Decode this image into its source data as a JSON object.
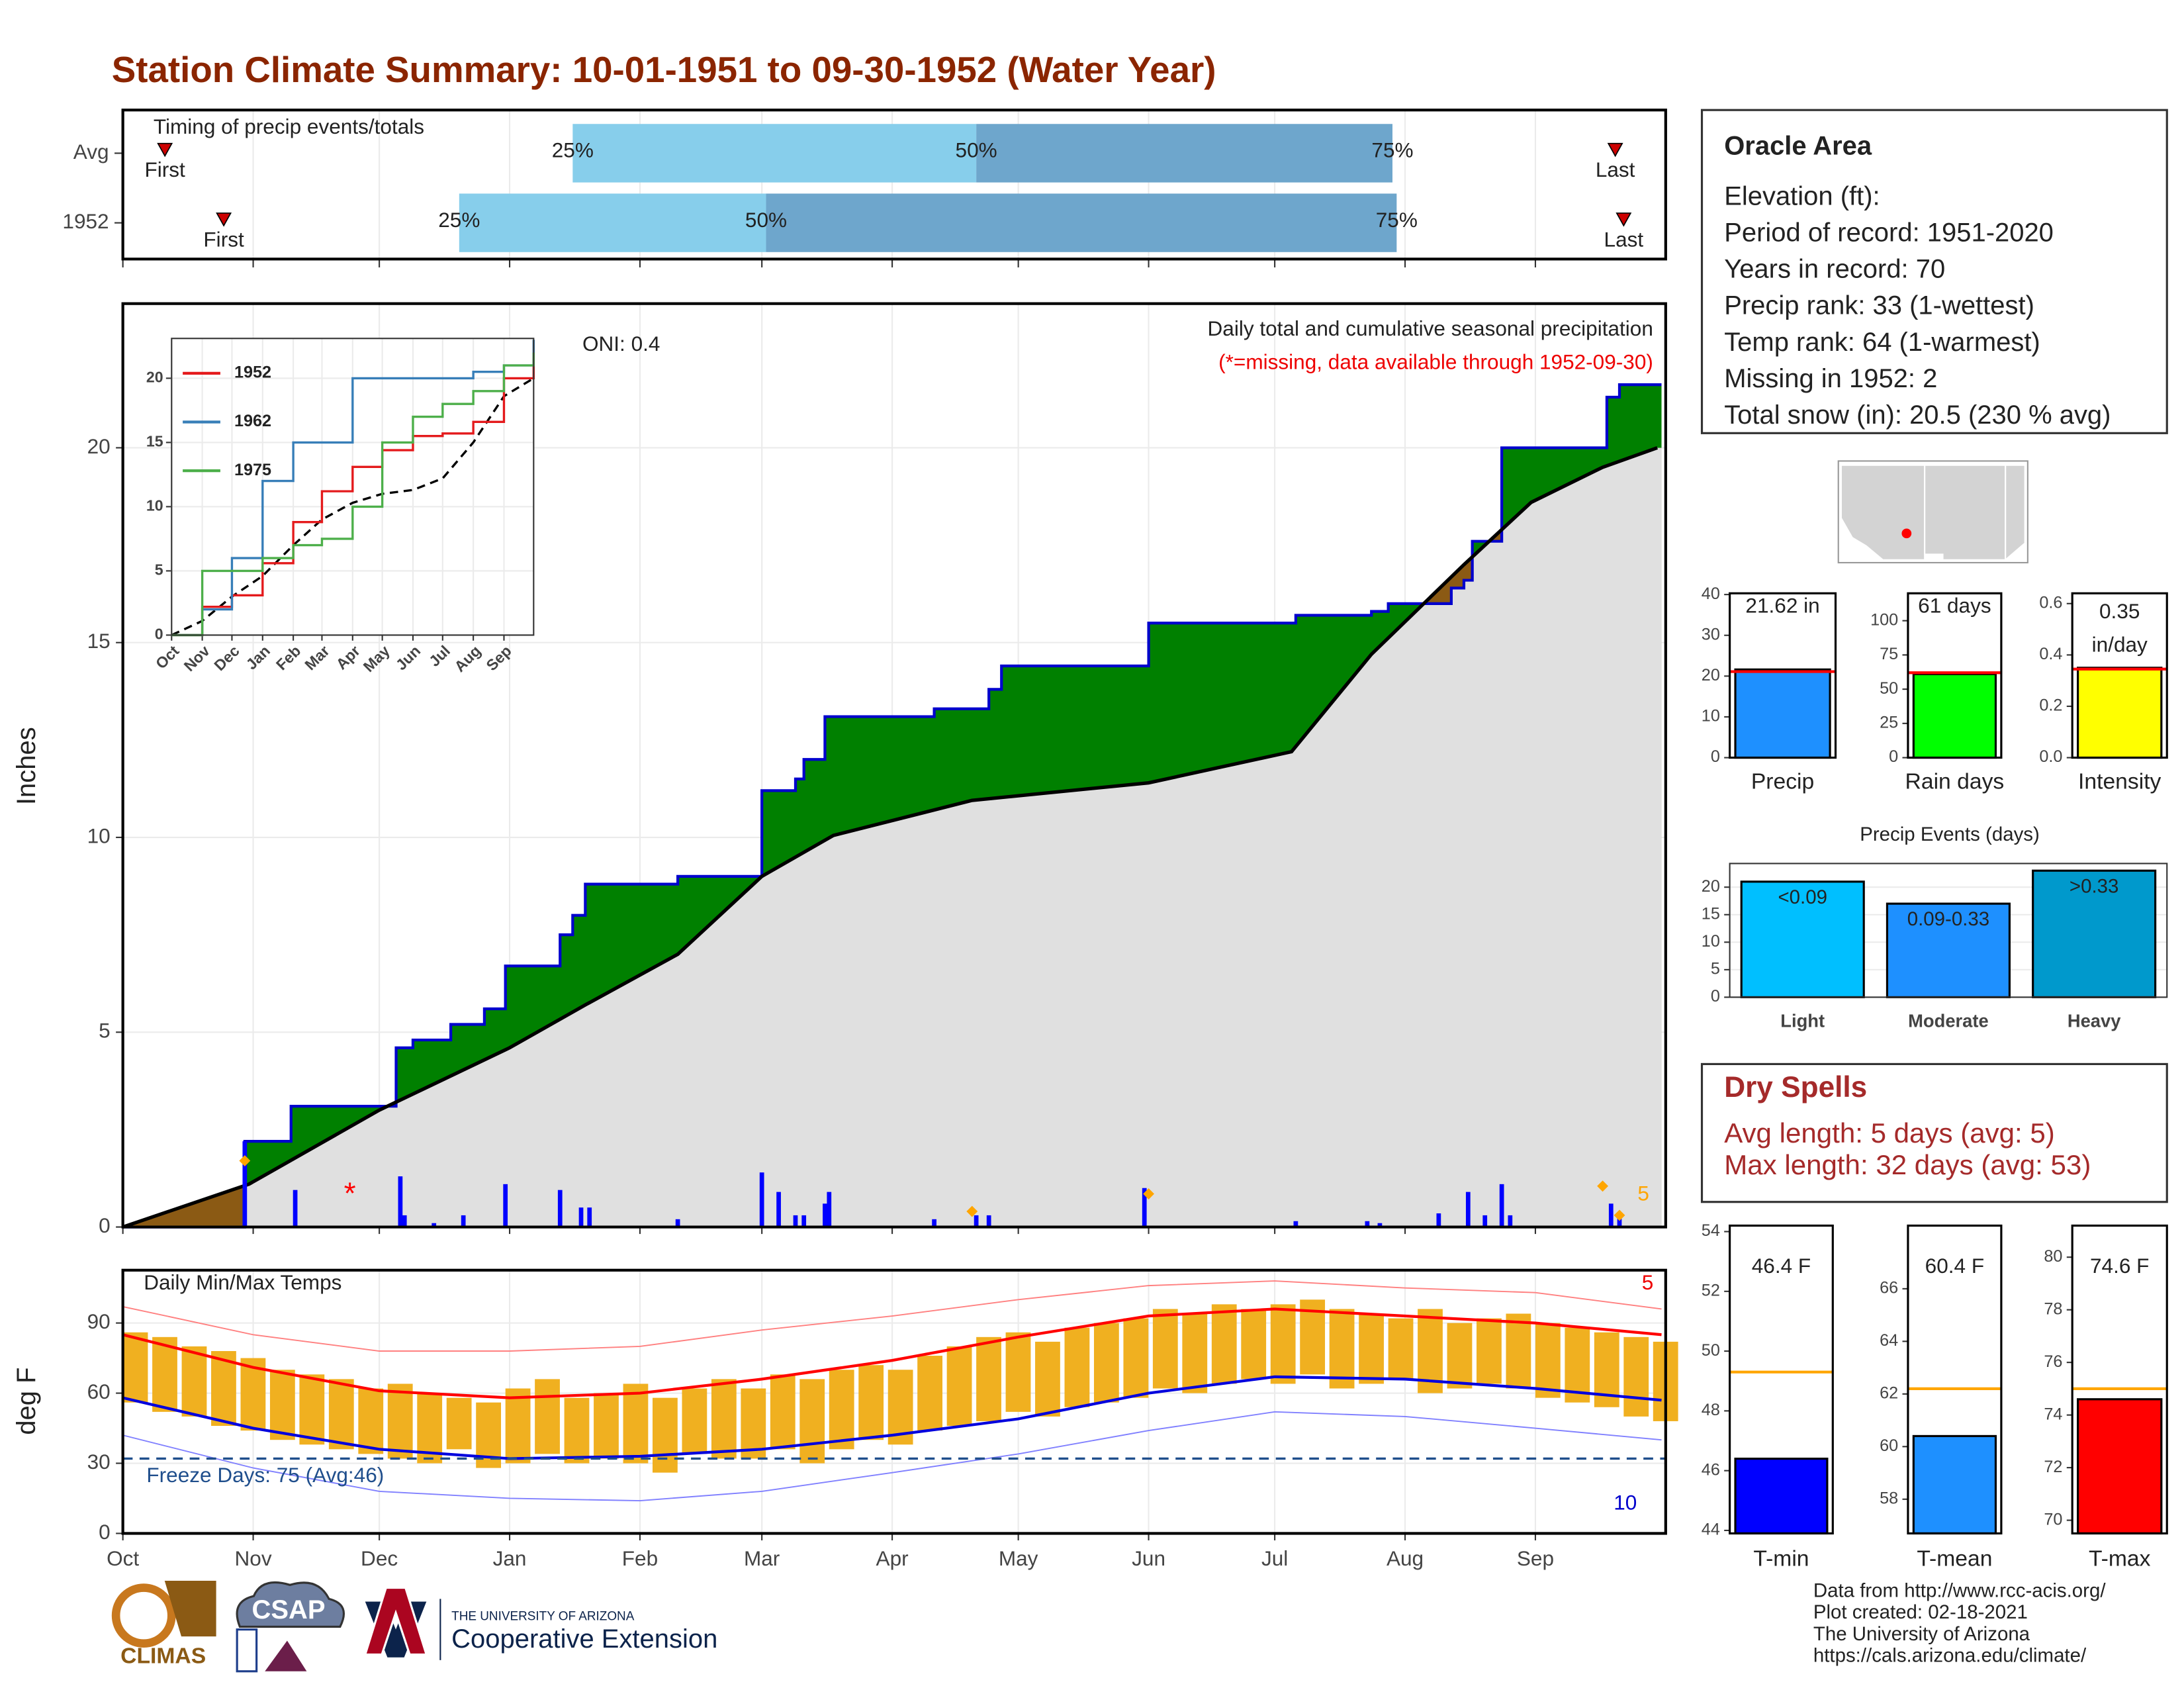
{
  "title": "Station Climate Summary: 10-01-1951 to 09-30-1952 (Water Year)",
  "timing": {
    "title": "Timing of precip events/totals",
    "xlim": [
      0,
      366
    ],
    "rows": [
      {
        "label": "Avg",
        "first": 10,
        "q25": 107,
        "q50": 203,
        "q75": 302,
        "last": 355
      },
      {
        "label": "1952",
        "first": 24,
        "q25": 80,
        "q50": 153,
        "q75": 303,
        "last": 357
      }
    ],
    "first_label": "First",
    "last_label": "Last",
    "q25_label": "25%",
    "q50_label": "50%",
    "q75_label": "75%",
    "light_color": "#87ceeb",
    "dark_color": "#6ea6cc",
    "marker_color": "#cc0000"
  },
  "precip": {
    "type": "area",
    "annotation": "ONI: 0.4",
    "subtitle": "Daily total and cumulative seasonal precipitation",
    "note": "(*=missing, data available through 1952-09-30)",
    "ylabel": "Inches",
    "xlim": [
      0,
      366
    ],
    "ylim": [
      0,
      23.7
    ],
    "yticks": [
      0,
      5,
      10,
      15,
      20
    ],
    "xticks": [
      {
        "value": 0,
        "label": "Oct"
      },
      {
        "value": 31,
        "label": "Nov"
      },
      {
        "value": 61,
        "label": "Dec"
      },
      {
        "value": 92,
        "label": "Jan"
      },
      {
        "value": 123,
        "label": "Feb"
      },
      {
        "value": 152,
        "label": "Mar"
      },
      {
        "value": 183,
        "label": "Apr"
      },
      {
        "value": 213,
        "label": "May"
      },
      {
        "value": 244,
        "label": "Jun"
      },
      {
        "value": 274,
        "label": "Jul"
      },
      {
        "value": 305,
        "label": "Aug"
      },
      {
        "value": 336,
        "label": "Sep"
      }
    ],
    "observed": {
      "color": "#0000cd",
      "x": [
        0,
        29,
        40,
        65,
        69,
        78,
        86,
        91,
        104,
        107,
        110,
        132,
        152,
        160,
        162,
        167,
        193,
        206,
        209,
        244,
        279,
        297,
        301,
        316,
        319,
        321,
        328,
        353,
        356
      ],
      "values": [
        0,
        2.2,
        3.1,
        4.6,
        4.8,
        5.2,
        5.6,
        6.7,
        7.5,
        8.0,
        8.8,
        9.0,
        11.2,
        11.5,
        12.0,
        13.1,
        13.3,
        13.8,
        14.4,
        15.5,
        15.7,
        15.8,
        16.0,
        16.4,
        16.6,
        17.6,
        20.0,
        21.3,
        21.62
      ]
    },
    "average": {
      "color": "#000000",
      "x": [
        0,
        30,
        61,
        92,
        110,
        132,
        152,
        169,
        202,
        244,
        278,
        297,
        319,
        335,
        352,
        365
      ],
      "values": [
        0,
        1.1,
        3.0,
        4.6,
        5.7,
        7.0,
        9.0,
        10.05,
        10.95,
        11.4,
        12.2,
        14.7,
        17.0,
        18.6,
        19.5,
        20.0
      ]
    },
    "above_color": "#008000",
    "below_color": "#8b5a14",
    "base_color": "#e0e0e0",
    "daily": {
      "color": "#0000ff",
      "x": [
        29,
        41,
        66,
        67,
        74,
        81,
        91,
        104,
        109,
        111,
        132,
        152,
        156,
        160,
        162,
        167,
        168,
        193,
        203,
        206,
        243,
        279,
        296,
        299,
        313,
        320,
        324,
        328,
        330,
        354,
        356
      ],
      "values": [
        2.2,
        0.95,
        1.3,
        0.3,
        0.1,
        0.3,
        1.1,
        0.95,
        0.5,
        0.5,
        0.2,
        1.4,
        0.9,
        0.3,
        0.3,
        0.6,
        0.9,
        0.2,
        0.3,
        0.3,
        1.0,
        0.15,
        0.15,
        0.1,
        0.35,
        0.9,
        0.3,
        1.1,
        0.3,
        0.6,
        0.3
      ]
    },
    "snow": {
      "color": "#ffa500",
      "x": [
        29,
        202,
        244,
        352,
        356
      ],
      "values": [
        1.7,
        0.4,
        0.85,
        1.05,
        0.3
      ],
      "count": 5
    },
    "missing": {
      "label": "*",
      "x": 54,
      "value": 0.95,
      "color": "#ff0000"
    }
  },
  "inset": {
    "xlim": [
      0,
      366
    ],
    "ylim": [
      0,
      23.1
    ],
    "yticks": [
      0,
      5,
      10,
      15,
      20
    ],
    "x": [
      0,
      31,
      61,
      92,
      123,
      152,
      183,
      213,
      244,
      274,
      305,
      336,
      366
    ],
    "series": [
      {
        "name": "1952",
        "color": "#e41a1c",
        "values": [
          0,
          2.2,
          3.1,
          5.6,
          8.8,
          11.2,
          13.1,
          14.4,
          15.5,
          15.7,
          16.6,
          20.0,
          21.6
        ]
      },
      {
        "name": "1962",
        "color": "#377eb8",
        "values": [
          0,
          2,
          6,
          12,
          15,
          15,
          20,
          20,
          20,
          20,
          20.5,
          21,
          23
        ]
      },
      {
        "name": "1975",
        "color": "#4daf4a",
        "values": [
          0,
          5,
          5,
          6,
          7,
          7.5,
          10,
          15,
          17,
          18,
          19,
          21,
          22
        ]
      }
    ],
    "average": {
      "color": "#000000",
      "values": [
        0,
        1.1,
        3,
        4.6,
        7,
        9,
        10.3,
        11,
        11.3,
        12.2,
        15,
        18.6,
        20
      ]
    }
  },
  "temps": {
    "title": "Daily Min/Max Temps",
    "ylabel": "deg F",
    "ylim": [
      0,
      112.6
    ],
    "yticks": [
      0,
      30,
      60,
      90
    ],
    "bar_color": "#f0b020",
    "x": [
      0,
      7,
      14,
      21,
      28,
      35,
      42,
      49,
      56,
      63,
      70,
      77,
      84,
      91,
      98,
      105,
      112,
      119,
      126,
      133,
      140,
      147,
      154,
      161,
      168,
      175,
      182,
      189,
      196,
      203,
      210,
      217,
      224,
      231,
      238,
      245,
      252,
      259,
      266,
      273,
      280,
      287,
      294,
      301,
      308,
      315,
      322,
      329,
      336,
      343,
      350,
      357,
      364
    ],
    "tmax": [
      86,
      84,
      80,
      78,
      75,
      70,
      68,
      66,
      62,
      64,
      60,
      58,
      56,
      62,
      66,
      58,
      60,
      64,
      58,
      62,
      66,
      62,
      68,
      66,
      70,
      72,
      70,
      76,
      80,
      84,
      86,
      82,
      88,
      90,
      92,
      96,
      94,
      98,
      96,
      98,
      100,
      96,
      94,
      92,
      96,
      90,
      92,
      94,
      90,
      88,
      86,
      84,
      82
    ],
    "tmin": [
      56,
      52,
      50,
      46,
      44,
      40,
      38,
      36,
      34,
      32,
      30,
      36,
      28,
      30,
      34,
      30,
      32,
      30,
      26,
      34,
      32,
      32,
      36,
      30,
      36,
      40,
      38,
      44,
      46,
      48,
      52,
      50,
      54,
      56,
      58,
      62,
      60,
      64,
      66,
      64,
      68,
      62,
      64,
      66,
      60,
      62,
      64,
      62,
      58,
      56,
      54,
      50,
      48
    ],
    "month_x": [
      0,
      31,
      61,
      92,
      123,
      152,
      183,
      213,
      244,
      274,
      305,
      336,
      366
    ],
    "avg_max": {
      "color": "#ff0000",
      "values": [
        85,
        71,
        61,
        58,
        60,
        66,
        74,
        84,
        93,
        96,
        93,
        90,
        85
      ]
    },
    "avg_min": {
      "color": "#0000dd",
      "values": [
        58,
        45,
        36,
        32,
        33,
        36,
        42,
        49,
        60,
        67,
        66,
        62,
        57
      ]
    },
    "record_max": {
      "color": "#ff8080",
      "values": [
        97,
        85,
        78,
        78,
        80,
        87,
        93,
        100,
        106,
        108,
        105,
        103,
        96
      ]
    },
    "record_min": {
      "color": "#8080ff",
      "values": [
        42,
        28,
        18,
        15,
        14,
        18,
        26,
        34,
        44,
        52,
        50,
        45,
        40
      ]
    },
    "freeze": {
      "value": 32,
      "label": "Freeze Days: 75 (Avg:46)",
      "color": "#1f4e8c"
    },
    "record_high_count": 5,
    "record_low_count": 10
  },
  "info": {
    "title": "Oracle Area",
    "lines": [
      "Elevation (ft):",
      "Period of record: 1951-2020",
      "Years in record: 70",
      "Precip rank: 33 (1-wettest)",
      "Temp rank: 64 (1-warmest)",
      "Missing in 1952: 2",
      "Total snow (in): 20.5 (230 % avg)"
    ]
  },
  "summary_bars": {
    "avg_color": "#ff0000",
    "items": [
      {
        "label": "Precip",
        "value": 21.62,
        "value_label": "21.62 in",
        "avg": 21.1,
        "color": "#1e90ff",
        "ylim": [
          0,
          40.3
        ],
        "yticks": [
          0,
          10,
          20,
          30,
          40
        ]
      },
      {
        "label": "Rain days",
        "value": 61,
        "value_label": "61 days",
        "avg": 62,
        "color": "#00ff00",
        "ylim": [
          0,
          120
        ],
        "yticks": [
          0,
          25,
          50,
          75,
          100
        ]
      },
      {
        "label": "Intensity",
        "value": 0.35,
        "value_label": "0.35",
        "unit_label": "in/day",
        "avg": 0.345,
        "color": "#ffff00",
        "ylim": [
          0,
          0.64
        ],
        "yticks": [
          {
            "value": 0,
            "label": "0.0"
          },
          {
            "value": 0.2,
            "label": "0.2"
          },
          {
            "value": 0.4,
            "label": "0.4"
          },
          {
            "value": 0.6,
            "label": "0.6"
          }
        ]
      }
    ]
  },
  "events": {
    "type": "bar",
    "title": "Precip Events (days)",
    "categories": [
      "Light",
      "Moderate",
      "Heavy"
    ],
    "values": [
      21,
      17,
      23
    ],
    "range_labels": [
      "<0.09",
      "0.09-0.33",
      ">0.33"
    ],
    "colors": [
      "#00bfff",
      "#1e90ff",
      "#0099cc"
    ],
    "ylim": [
      0,
      24.3
    ],
    "yticks": [
      0,
      5,
      10,
      15,
      20
    ]
  },
  "dry_spells": {
    "title": "Dry Spells",
    "lines": [
      "Avg length: 5 days (avg: 5)",
      "Max length: 32 days (avg: 53)"
    ]
  },
  "temp_bars": {
    "avg_color": "#ffa500",
    "items": [
      {
        "label": "T-min",
        "value": 46.4,
        "value_label": "46.4 F",
        "avg": 49.3,
        "color": "#0000ff",
        "ylim": [
          43.9,
          54.2
        ],
        "yticks": [
          44,
          46,
          48,
          50,
          52,
          54
        ]
      },
      {
        "label": "T-mean",
        "value": 60.4,
        "value_label": "60.4 F",
        "avg": 62.2,
        "color": "#1e90ff",
        "ylim": [
          56.7,
          68.4
        ],
        "yticks": [
          58,
          60,
          62,
          64,
          66
        ]
      },
      {
        "label": "T-max",
        "value": 74.6,
        "value_label": "74.6 F",
        "avg": 75.0,
        "color": "#ff0000",
        "ylim": [
          69.5,
          81.2
        ],
        "yticks": [
          70,
          72,
          74,
          76,
          78,
          80
        ]
      }
    ]
  },
  "footer": {
    "climas": "CLIMAS",
    "csap": "CSAP",
    "university": "THE UNIVERSITY OF ARIZONA",
    "extension": "Cooperative Extension",
    "credits": [
      "Data from http://www.rcc-acis.org/",
      "Plot created: 02-18-2021",
      "The University of Arizona",
      "https://cals.arizona.edu/climate/"
    ]
  }
}
